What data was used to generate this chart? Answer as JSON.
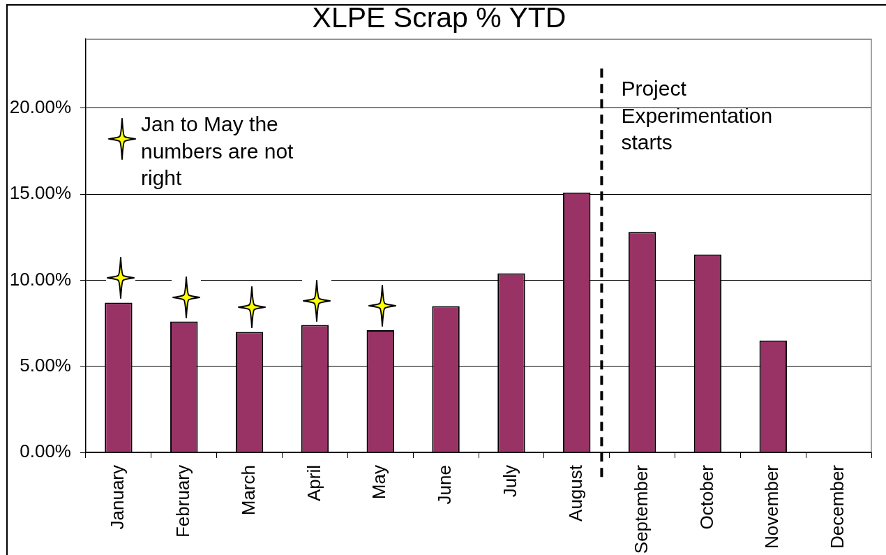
{
  "chart_data": {
    "type": "bar",
    "title": "XLPE Scrap % YTD",
    "categories": [
      "January",
      "February",
      "March",
      "April",
      "May",
      "June",
      "July",
      "August",
      "September",
      "October",
      "November",
      "December"
    ],
    "values": [
      8.7,
      7.6,
      7.0,
      7.4,
      7.1,
      8.5,
      10.4,
      15.1,
      12.8,
      11.5,
      6.5,
      null
    ],
    "color": "#993366",
    "ylim": [
      0,
      24
    ],
    "yticks": [
      {
        "value": 0,
        "label": "0.00%"
      },
      {
        "value": 5,
        "label": "5.00%"
      },
      {
        "value": 10,
        "label": "10.00%"
      },
      {
        "value": 15,
        "label": "15.00%"
      },
      {
        "value": 20,
        "label": "20.00%"
      }
    ],
    "grid": "y",
    "ref_lines": [
      {
        "axis": "x",
        "value": "August",
        "label": "Project Experimentation starts",
        "color": "#000000",
        "line_style": "dashed"
      }
    ],
    "annotations": [
      "Jan to May the numbers are not right"
    ]
  }
}
